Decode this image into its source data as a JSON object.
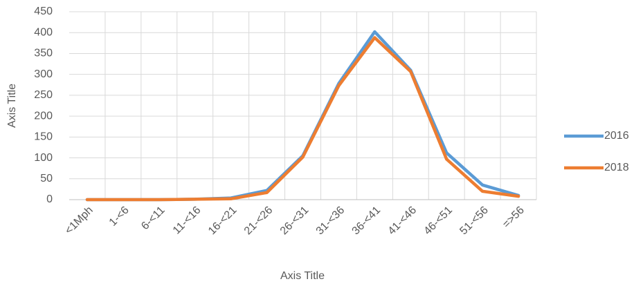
{
  "chart_data": {
    "type": "line",
    "x_label": "Axis Title",
    "y_label": "Axis Title",
    "categories": [
      "<1Mph",
      "1-<6",
      "6-<11",
      "11-<16",
      "16-<21",
      "21-<26",
      "26-<31",
      "31-<36",
      "36-<41",
      "41-<46",
      "46-<51",
      "51-<56",
      "=>56"
    ],
    "series": [
      {
        "name": "2016",
        "color": "#5b9bd5",
        "values": [
          0,
          0,
          0,
          1,
          4,
          22,
          105,
          278,
          402,
          310,
          112,
          35,
          10
        ]
      },
      {
        "name": "2018",
        "color": "#ed7d31",
        "values": [
          0,
          0,
          0,
          1,
          2,
          17,
          102,
          273,
          388,
          307,
          97,
          20,
          8
        ]
      }
    ],
    "ylim": [
      0,
      450
    ],
    "yticks": [
      0,
      50,
      100,
      150,
      200,
      250,
      300,
      350,
      400,
      450
    ],
    "grid": true,
    "legend": "right"
  }
}
